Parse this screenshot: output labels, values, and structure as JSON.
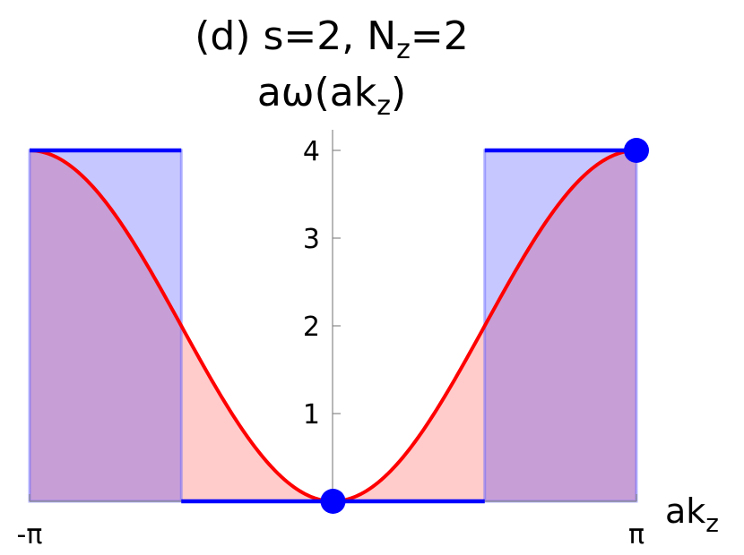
{
  "chart_data": {
    "type": "area",
    "title": "(d) s=2, N_z=2",
    "subtitle": "aω(ak_z)",
    "xlabel": "ak_z",
    "ylabel": "",
    "xlim": [
      -3.14159,
      3.14159
    ],
    "ylim": [
      0,
      4
    ],
    "x_ticks": [
      "-π",
      "π"
    ],
    "y_ticks": [
      1,
      2,
      3,
      4
    ],
    "grid": false,
    "series": [
      {
        "kind": "continuous",
        "color": "#ff0000",
        "fill": "#ffc8c8",
        "formula": "2*(1 - cos(x))",
        "x": [
          -3.14159,
          -2.356,
          -1.5708,
          -0.7854,
          0,
          0.7854,
          1.5708,
          2.356,
          3.14159
        ],
        "y": [
          4,
          3.414,
          2,
          0.586,
          0,
          0.586,
          2,
          3.414,
          4
        ]
      },
      {
        "kind": "discrete-steps",
        "color": "#0000ff",
        "fill": "#c8c8ff",
        "segments": [
          {
            "x0": -3.14159,
            "x1": -1.5708,
            "y": 4
          },
          {
            "x0": -1.5708,
            "x1": 1.5708,
            "y": 0
          },
          {
            "x0": 1.5708,
            "x1": 3.14159,
            "y": 4
          }
        ]
      }
    ],
    "markers": [
      {
        "x": 0,
        "y": 0,
        "color": "#0000ff"
      },
      {
        "x": 3.14159,
        "y": 4,
        "color": "#0000ff"
      }
    ]
  }
}
